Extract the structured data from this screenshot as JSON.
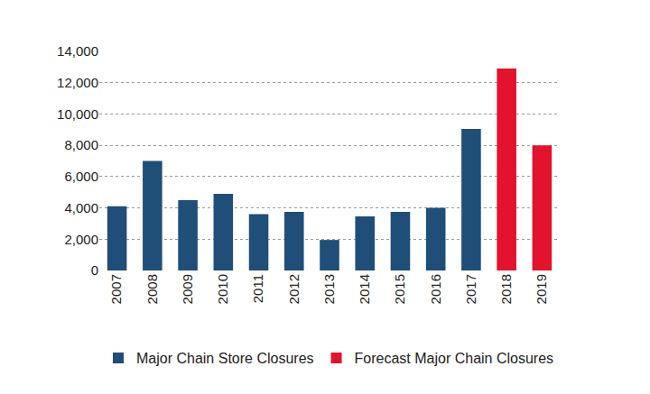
{
  "chart_data": {
    "type": "bar",
    "categories": [
      "2007",
      "2008",
      "2009",
      "2010",
      "2011",
      "2012",
      "2013",
      "2014",
      "2015",
      "2016",
      "2017",
      "2018",
      "2019"
    ],
    "series": [
      {
        "name": "Major Chain Store Closures",
        "color": "#1f4e79",
        "values": [
          4100,
          7000,
          4500,
          4900,
          3600,
          3750,
          1950,
          3450,
          3750,
          4000,
          9050,
          null,
          null
        ]
      },
      {
        "name": "Forecast Major Chain Closures",
        "color": "#e3122d",
        "values": [
          null,
          null,
          null,
          null,
          null,
          null,
          null,
          null,
          null,
          null,
          null,
          12900,
          8000
        ]
      }
    ],
    "ylim": [
      0,
      14000
    ],
    "yticks": [
      0,
      {
        "value": 2000,
        "label": "2,000"
      },
      {
        "value": 4000,
        "label": "4,000"
      },
      {
        "value": 6000,
        "label": "6,000"
      },
      {
        "value": 8000,
        "label": "8,000"
      },
      {
        "value": 10000,
        "label": "10,000"
      },
      {
        "value": 12000,
        "label": "12,000"
      },
      {
        "value": 14000,
        "label": "14,000"
      }
    ],
    "grid": true,
    "legend": "bottom"
  }
}
